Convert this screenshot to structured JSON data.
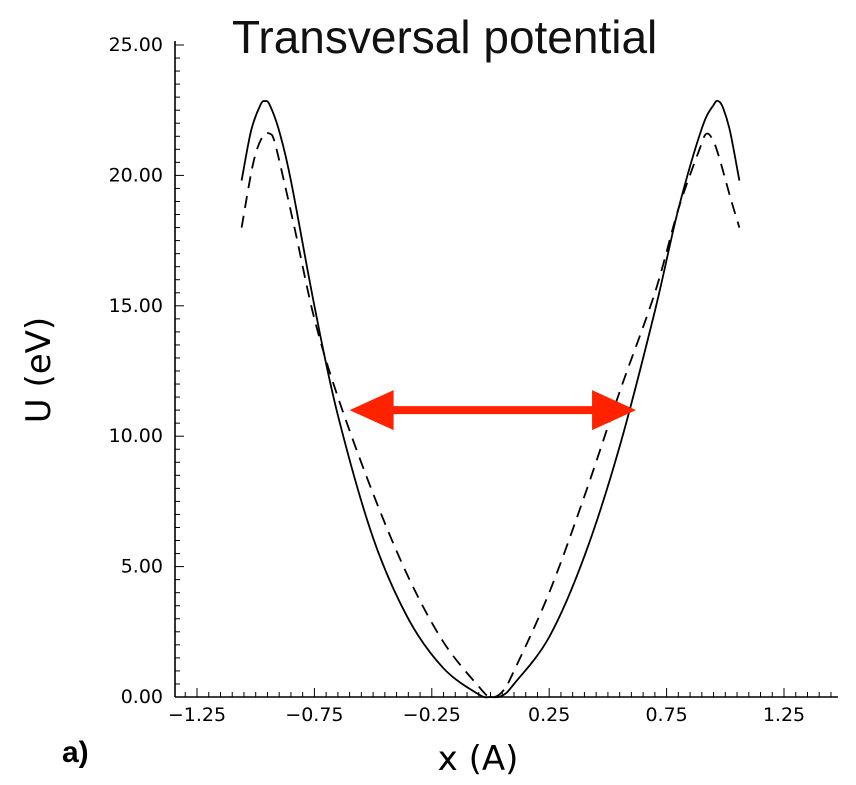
{
  "chart_data": {
    "type": "line",
    "title": "Transversal potential",
    "panel_label": "a)",
    "xlabel": "x (A)",
    "ylabel": "U (eV)",
    "xlim": [
      -1.25,
      1.25
    ],
    "ylim": [
      0,
      25
    ],
    "x_ticks": [
      "-1.25",
      "-0.75",
      "-0.25",
      "0.25",
      "0.75",
      "1.25"
    ],
    "y_ticks": [
      "0.00",
      "5.00",
      "10.00",
      "15.00",
      "20.00",
      "25.00"
    ],
    "grid": false,
    "series": [
      {
        "style": "solid",
        "color": "#000000",
        "x": [
          -1.06,
          -1.02,
          -0.98,
          -0.96,
          -0.94,
          -0.9,
          -0.85,
          -0.75,
          -0.65,
          -0.5,
          -0.35,
          -0.2,
          -0.05,
          0.0,
          0.05,
          0.1,
          0.25,
          0.4,
          0.55,
          0.7,
          0.8,
          0.9,
          0.95,
          0.97,
          0.99,
          1.02,
          1.06
        ],
        "y": [
          19.8,
          21.7,
          22.7,
          22.85,
          22.7,
          21.7,
          19.8,
          15.0,
          10.8,
          6.1,
          3.0,
          1.1,
          0.1,
          0.0,
          0.05,
          0.5,
          2.3,
          5.4,
          9.6,
          14.8,
          18.7,
          21.8,
          22.7,
          22.85,
          22.6,
          21.7,
          19.8
        ]
      },
      {
        "style": "dashed",
        "color": "#000000",
        "x": [
          -1.06,
          -1.01,
          -0.97,
          -0.94,
          -0.92,
          -0.88,
          -0.83,
          -0.75,
          -0.65,
          -0.5,
          -0.35,
          -0.2,
          -0.05,
          0.0,
          0.05,
          0.1,
          0.25,
          0.4,
          0.55,
          0.7,
          0.8,
          0.89,
          0.92,
          0.95,
          0.98,
          1.02,
          1.06
        ],
        "y": [
          18.0,
          20.5,
          21.5,
          21.6,
          21.3,
          19.8,
          17.8,
          14.5,
          11.5,
          7.8,
          4.6,
          2.1,
          0.4,
          0.0,
          0.2,
          1.0,
          4.0,
          7.7,
          11.7,
          15.5,
          18.7,
          21.0,
          21.6,
          21.3,
          20.5,
          19.2,
          18.0
        ]
      }
    ],
    "annotation": {
      "type": "double-arrow",
      "color": "#ff2200",
      "x_start": -0.6,
      "x_end": 0.62,
      "y": 11.0
    }
  }
}
